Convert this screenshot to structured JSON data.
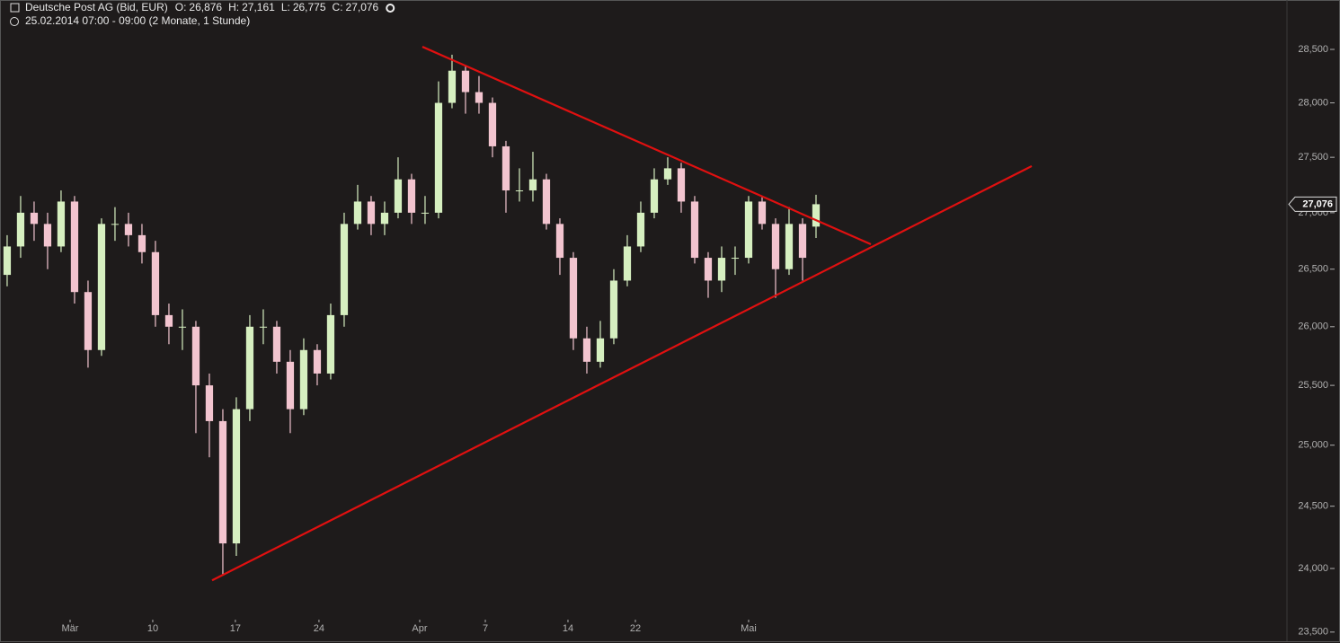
{
  "header": {
    "instrument": "Deutsche Post AG (Bid, EUR)",
    "ohlc": [
      {
        "key": "O:",
        "value": "26,876"
      },
      {
        "key": "H:",
        "value": "27,161"
      },
      {
        "key": "L:",
        "value": "26,775"
      },
      {
        "key": "C:",
        "value": "27,076"
      }
    ],
    "range": "25.02.2014 07:00 - 09:00 (2 Monate, 1 Stunde)"
  },
  "chart_data": {
    "type": "candlestick",
    "x": [
      0,
      1,
      2,
      3,
      4,
      5,
      6,
      7,
      8,
      9,
      10,
      11,
      12,
      13,
      14,
      15,
      16,
      17,
      18,
      19,
      20,
      21,
      22,
      23,
      24,
      25,
      26,
      27,
      28,
      29,
      30,
      31,
      32,
      33,
      34,
      35,
      36,
      37,
      38,
      39,
      40,
      41,
      42,
      43,
      44,
      45,
      46,
      47,
      48,
      49,
      50,
      51,
      52,
      53,
      54,
      55,
      56,
      57,
      58,
      59,
      60
    ],
    "open": [
      26450,
      26700,
      27000,
      26900,
      26700,
      27100,
      26300,
      25800,
      26900,
      26900,
      26800,
      26650,
      26100,
      26000,
      26000,
      25500,
      25200,
      24200,
      25300,
      26000,
      26000,
      25700,
      25300,
      25800,
      25600,
      26100,
      26900,
      27100,
      26900,
      27000,
      27300,
      27000,
      27000,
      28000,
      28300,
      28100,
      28000,
      27600,
      27200,
      27200,
      27300,
      26900,
      26600,
      25900,
      25700,
      25900,
      26400,
      26700,
      27000,
      27300,
      27400,
      27100,
      26600,
      26400,
      26600,
      26600,
      27100,
      26900,
      26500,
      26900,
      26876
    ],
    "high": [
      26800,
      27150,
      27100,
      27000,
      27200,
      27150,
      26400,
      26950,
      27050,
      27000,
      26900,
      26750,
      26200,
      26150,
      26050,
      25600,
      25300,
      25400,
      26100,
      26150,
      26050,
      25800,
      25900,
      25850,
      26200,
      27000,
      27250,
      27150,
      27100,
      27500,
      27350,
      27150,
      28200,
      28450,
      28350,
      28250,
      28050,
      27650,
      27400,
      27550,
      27350,
      26950,
      26650,
      26000,
      26050,
      26500,
      26800,
      27100,
      27400,
      27500,
      27450,
      27150,
      26650,
      26700,
      26700,
      27150,
      27150,
      26950,
      27050,
      26950,
      27161
    ],
    "low": [
      26350,
      26600,
      26750,
      26500,
      26650,
      26200,
      25650,
      25750,
      26750,
      26700,
      26550,
      26000,
      25850,
      25800,
      25100,
      24900,
      23950,
      24100,
      25200,
      25850,
      25600,
      25100,
      25250,
      25500,
      25550,
      26000,
      26850,
      26800,
      26800,
      26950,
      26900,
      26900,
      26950,
      27950,
      27900,
      27900,
      27500,
      27000,
      27100,
      27100,
      26850,
      26450,
      25800,
      25600,
      25650,
      25850,
      26350,
      26650,
      26950,
      27250,
      27000,
      26550,
      26250,
      26300,
      26450,
      26550,
      26850,
      26250,
      26450,
      26400,
      26775
    ],
    "close": [
      26700,
      27000,
      26900,
      26700,
      27100,
      26300,
      25800,
      26900,
      26900,
      26800,
      26650,
      26100,
      26000,
      26000,
      25500,
      25200,
      24200,
      25300,
      26000,
      26000,
      25700,
      25300,
      25800,
      25600,
      26100,
      26900,
      27100,
      26900,
      27000,
      27300,
      27000,
      27000,
      28000,
      28300,
      28100,
      28000,
      27600,
      27200,
      27200,
      27300,
      26900,
      26600,
      25900,
      25700,
      25900,
      26400,
      26700,
      27000,
      27300,
      27400,
      27100,
      26600,
      26400,
      26600,
      26600,
      27100,
      26900,
      26500,
      26900,
      26600,
      27076
    ],
    "up_color": "#d6efc0",
    "down_color": "#f2c4cf",
    "xlim": [
      -0.33,
      94.8
    ],
    "xticks": [
      {
        "value": 4.67,
        "label": "Mär"
      },
      {
        "value": 10.8,
        "label": "10"
      },
      {
        "value": 16.93,
        "label": "17"
      },
      {
        "value": 23.13,
        "label": "24"
      },
      {
        "value": 30.6,
        "label": "Apr"
      },
      {
        "value": 35.47,
        "label": "7"
      },
      {
        "value": 41.6,
        "label": "14"
      },
      {
        "value": 46.6,
        "label": "22"
      },
      {
        "value": 55.0,
        "label": "Mai"
      }
    ],
    "ylim": [
      23443,
      28970
    ],
    "ylog": true,
    "yticks": [
      {
        "value": 23500,
        "label": "23,500"
      },
      {
        "value": 24000,
        "label": "24,000"
      },
      {
        "value": 24500,
        "label": "24,500"
      },
      {
        "value": 25000,
        "label": "25,000"
      },
      {
        "value": 25500,
        "label": "25,500"
      },
      {
        "value": 26000,
        "label": "26,000"
      },
      {
        "value": 26500,
        "label": "26,500"
      },
      {
        "value": 27000,
        "label": "27,000"
      },
      {
        "value": 27500,
        "label": "27,500"
      },
      {
        "value": 28000,
        "label": "28,000"
      },
      {
        "value": 28500,
        "label": "28,500"
      }
    ],
    "last_label": {
      "value": 27076,
      "label": "27,076"
    },
    "lines": [
      {
        "color": "#e01010",
        "x": [
          15.2,
          76.0
        ],
        "y": [
          23906,
          27420
        ]
      },
      {
        "color": "#e01010",
        "x": [
          30.8,
          64.07
        ],
        "y": [
          28525,
          26719
        ]
      }
    ]
  }
}
